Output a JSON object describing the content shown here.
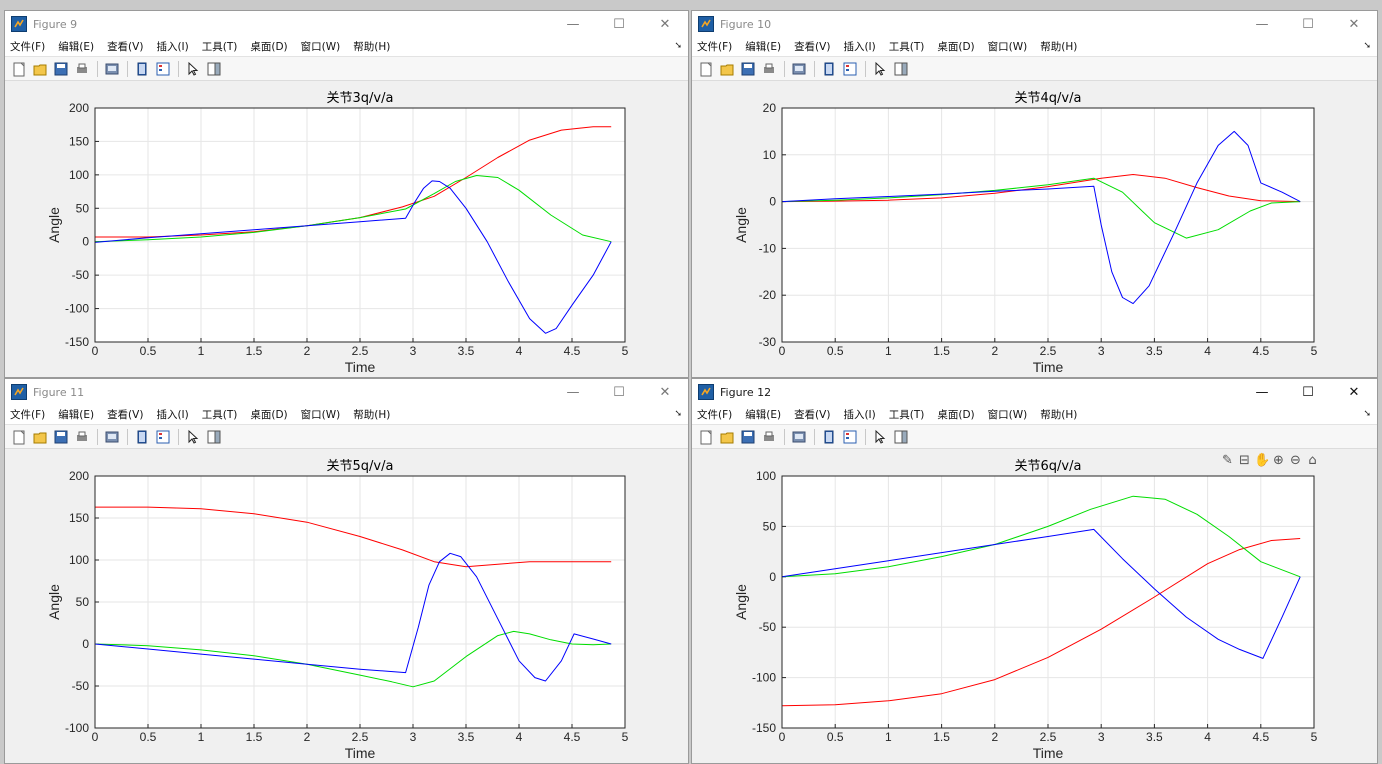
{
  "windows": [
    {
      "id": "fig9",
      "title": "Figure 9",
      "active": false,
      "menu": [
        "文件(F)",
        "编辑(E)",
        "查看(V)",
        "插入(I)",
        "工具(T)",
        "桌面(D)",
        "窗口(W)",
        "帮助(H)"
      ],
      "controls": [
        "—",
        "☐",
        "✕"
      ],
      "chart_data": {
        "type": "line",
        "title": "关节3q/v/a",
        "xlabel": "Time",
        "ylabel": "Angle",
        "xlim": [
          0,
          5
        ],
        "ylim": [
          -150,
          200
        ],
        "xticks": [
          0,
          0.5,
          1,
          1.5,
          2,
          2.5,
          3,
          3.5,
          4,
          4.5,
          5
        ],
        "yticks": [
          -150,
          -100,
          -50,
          0,
          50,
          100,
          150,
          200
        ],
        "grid": true,
        "series": [
          {
            "color": "#ff0000",
            "x": [
              0,
              0.5,
              1,
              1.5,
              2,
              2.5,
              2.9,
              3.2,
              3.5,
              3.8,
              4.1,
              4.4,
              4.7,
              4.87
            ],
            "y": [
              7,
              7,
              10,
              15,
              24,
              36,
              52,
              68,
              96,
              126,
              152,
              167,
              172,
              172
            ]
          },
          {
            "color": "#00dd00",
            "x": [
              0,
              0.5,
              1,
              1.5,
              2,
              2.5,
              2.93,
              3.2,
              3.4,
              3.6,
              3.8,
              4.0,
              4.3,
              4.6,
              4.87
            ],
            "y": [
              0,
              3,
              7,
              14,
              24,
              36,
              49,
              72,
              90,
              99,
              96,
              77,
              40,
              10,
              0
            ]
          },
          {
            "color": "#0000ff",
            "x": [
              0,
              0.5,
              1,
              1.5,
              2,
              2.5,
              2.93,
              3.02,
              3.1,
              3.18,
              3.25,
              3.35,
              3.5,
              3.7,
              3.9,
              4.1,
              4.25,
              4.35,
              4.5,
              4.7,
              4.87
            ],
            "y": [
              -1,
              6,
              12,
              18,
              24,
              30,
              35,
              60,
              80,
              91,
              90,
              80,
              50,
              0,
              -60,
              -115,
              -137,
              -130,
              -95,
              -50,
              0
            ]
          }
        ]
      }
    },
    {
      "id": "fig10",
      "title": "Figure 10",
      "active": false,
      "menu": [
        "文件(F)",
        "编辑(E)",
        "查看(V)",
        "插入(I)",
        "工具(T)",
        "桌面(D)",
        "窗口(W)",
        "帮助(H)"
      ],
      "controls": [
        "—",
        "☐",
        "✕"
      ],
      "chart_data": {
        "type": "line",
        "title": "关节4q/v/a",
        "xlabel": "Time",
        "ylabel": "Angle",
        "xlim": [
          0,
          5
        ],
        "ylim": [
          -30,
          20
        ],
        "xticks": [
          0,
          0.5,
          1,
          1.5,
          2,
          2.5,
          3,
          3.5,
          4,
          4.5,
          5
        ],
        "yticks": [
          -30,
          -20,
          -10,
          0,
          10,
          20
        ],
        "grid": true,
        "series": [
          {
            "color": "#ff0000",
            "x": [
              0,
              0.5,
              1,
              1.5,
              2,
              2.5,
              3,
              3.3,
              3.6,
              3.9,
              4.2,
              4.5,
              4.87
            ],
            "y": [
              0,
              0.1,
              0.3,
              0.8,
              1.8,
              3.2,
              5.0,
              5.8,
              5.0,
              3.0,
              1.2,
              0.2,
              0
            ]
          },
          {
            "color": "#00dd00",
            "x": [
              0,
              0.5,
              1,
              1.5,
              2,
              2.5,
              2.93,
              3.2,
              3.5,
              3.8,
              4.1,
              4.4,
              4.6,
              4.87
            ],
            "y": [
              0,
              0.3,
              0.8,
              1.5,
              2.4,
              3.6,
              5.0,
              2.0,
              -4.5,
              -7.8,
              -6.0,
              -2.0,
              -0.3,
              0
            ]
          },
          {
            "color": "#0000ff",
            "x": [
              0,
              0.5,
              1,
              1.5,
              2,
              2.5,
              2.93,
              3.0,
              3.1,
              3.2,
              3.3,
              3.45,
              3.7,
              3.9,
              4.1,
              4.25,
              4.38,
              4.5,
              4.7,
              4.87
            ],
            "y": [
              0,
              0.6,
              1.1,
              1.6,
              2.2,
              2.7,
              3.3,
              -5.0,
              -15.0,
              -20.5,
              -21.8,
              -18.0,
              -6.0,
              4.0,
              12.0,
              15.0,
              12.0,
              4.0,
              2.0,
              0
            ]
          }
        ]
      }
    },
    {
      "id": "fig11",
      "title": "Figure 11",
      "active": false,
      "menu": [
        "文件(F)",
        "编辑(E)",
        "查看(V)",
        "插入(I)",
        "工具(T)",
        "桌面(D)",
        "窗口(W)",
        "帮助(H)"
      ],
      "controls": [
        "—",
        "☐",
        "✕"
      ],
      "chart_data": {
        "type": "line",
        "title": "关节5q/v/a",
        "xlabel": "Time",
        "ylabel": "Angle",
        "xlim": [
          0,
          5
        ],
        "ylim": [
          -100,
          200
        ],
        "xticks": [
          0,
          0.5,
          1,
          1.5,
          2,
          2.5,
          3,
          3.5,
          4,
          4.5,
          5
        ],
        "yticks": [
          -100,
          -50,
          0,
          50,
          100,
          150,
          200
        ],
        "grid": true,
        "series": [
          {
            "color": "#ff0000",
            "x": [
              0,
              0.5,
              1,
              1.5,
              2,
              2.5,
              2.9,
              3.2,
              3.5,
              3.8,
              4.1,
              4.4,
              4.87
            ],
            "y": [
              163,
              163,
              161,
              155,
              145,
              128,
              112,
              98,
              92,
              95,
              98,
              98,
              98
            ]
          },
          {
            "color": "#00dd00",
            "x": [
              0,
              0.5,
              1,
              1.5,
              2,
              2.5,
              2.8,
              3.0,
              3.2,
              3.5,
              3.8,
              3.95,
              4.1,
              4.3,
              4.5,
              4.7,
              4.87
            ],
            "y": [
              0,
              -2,
              -7,
              -14,
              -24,
              -37,
              -45,
              -51,
              -44,
              -15,
              10,
              15,
              12,
              5,
              0,
              -1,
              0
            ]
          },
          {
            "color": "#0000ff",
            "x": [
              0,
              0.5,
              1,
              1.5,
              2,
              2.5,
              2.93,
              3.05,
              3.15,
              3.25,
              3.35,
              3.45,
              3.6,
              3.8,
              4.0,
              4.15,
              4.25,
              4.4,
              4.52,
              4.7,
              4.87
            ],
            "y": [
              0,
              -6,
              -12,
              -18,
              -24,
              -30,
              -34,
              20,
              70,
              98,
              108,
              104,
              80,
              30,
              -20,
              -40,
              -44,
              -20,
              12,
              6,
              0
            ]
          }
        ]
      }
    },
    {
      "id": "fig12",
      "title": "Figure 12",
      "active": true,
      "menu": [
        "文件(F)",
        "编辑(E)",
        "查看(V)",
        "插入(I)",
        "工具(T)",
        "桌面(D)",
        "窗口(W)",
        "帮助(H)"
      ],
      "controls": [
        "—",
        "☐",
        "✕"
      ],
      "axes_tools": [
        "✎",
        "⊟",
        "✋",
        "⊕",
        "⊖",
        "⌂"
      ],
      "chart_data": {
        "type": "line",
        "title": "关节6q/v/a",
        "xlabel": "Time",
        "ylabel": "Angle",
        "xlim": [
          0,
          5
        ],
        "ylim": [
          -150,
          100
        ],
        "xticks": [
          0,
          0.5,
          1,
          1.5,
          2,
          2.5,
          3,
          3.5,
          4,
          4.5,
          5
        ],
        "yticks": [
          -150,
          -100,
          -50,
          0,
          50,
          100
        ],
        "grid": true,
        "series": [
          {
            "color": "#ff0000",
            "x": [
              0,
              0.5,
              1,
              1.5,
              2,
              2.5,
              3,
              3.5,
              4,
              4.3,
              4.6,
              4.87
            ],
            "y": [
              -128,
              -127,
              -123,
              -116,
              -102,
              -80,
              -52,
              -20,
              13,
              27,
              36,
              38
            ]
          },
          {
            "color": "#00dd00",
            "x": [
              0,
              0.5,
              1,
              1.5,
              2,
              2.5,
              2.9,
              3.3,
              3.6,
              3.9,
              4.2,
              4.5,
              4.87
            ],
            "y": [
              0,
              3,
              10,
              20,
              32,
              50,
              67,
              80,
              77,
              62,
              40,
              15,
              0
            ]
          },
          {
            "color": "#0000ff",
            "x": [
              0,
              0.5,
              1,
              1.5,
              2,
              2.5,
              2.93,
              3.2,
              3.5,
              3.8,
              4.1,
              4.3,
              4.52,
              4.7,
              4.87
            ],
            "y": [
              0,
              8,
              16,
              24,
              32,
              40,
              47,
              18,
              -12,
              -40,
              -62,
              -72,
              -81,
              -40,
              0
            ]
          }
        ]
      }
    }
  ]
}
